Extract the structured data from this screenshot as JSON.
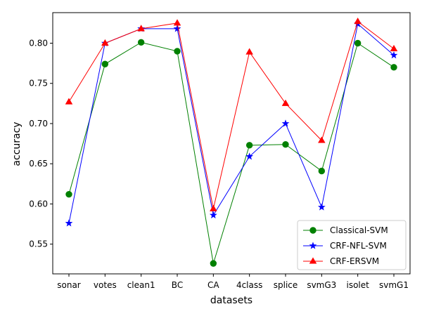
{
  "chart_data": {
    "type": "line",
    "title": "",
    "xlabel": "datasets",
    "ylabel": "accuracy",
    "categories": [
      "sonar",
      "votes",
      "clean1",
      "BC",
      "CA",
      "4class",
      "splice",
      "svmG3",
      "isolet",
      "svmG1"
    ],
    "ylim": [
      0.513,
      0.838
    ],
    "yticks": [
      0.55,
      0.6,
      0.65,
      0.7,
      0.75,
      0.8
    ],
    "ytick_labels": [
      "0.55",
      "0.60",
      "0.65",
      "0.70",
      "0.75",
      "0.80"
    ],
    "grid": false,
    "legend_position": "lower-right",
    "series": [
      {
        "name": "Classical-SVM",
        "color": "#008000",
        "marker": "circle",
        "values": [
          0.612,
          0.774,
          0.801,
          0.79,
          0.526,
          0.673,
          0.674,
          0.641,
          0.8,
          0.77
        ]
      },
      {
        "name": "CRF-NFL-SVM",
        "color": "#0000ff",
        "marker": "star",
        "values": [
          0.576,
          0.8,
          0.818,
          0.818,
          0.586,
          0.659,
          0.7,
          0.596,
          0.824,
          0.785
        ]
      },
      {
        "name": "CRF-ERSVM",
        "color": "#ff0000",
        "marker": "triangle",
        "values": [
          0.727,
          0.8,
          0.818,
          0.825,
          0.594,
          0.789,
          0.725,
          0.679,
          0.827,
          0.793
        ]
      }
    ]
  }
}
